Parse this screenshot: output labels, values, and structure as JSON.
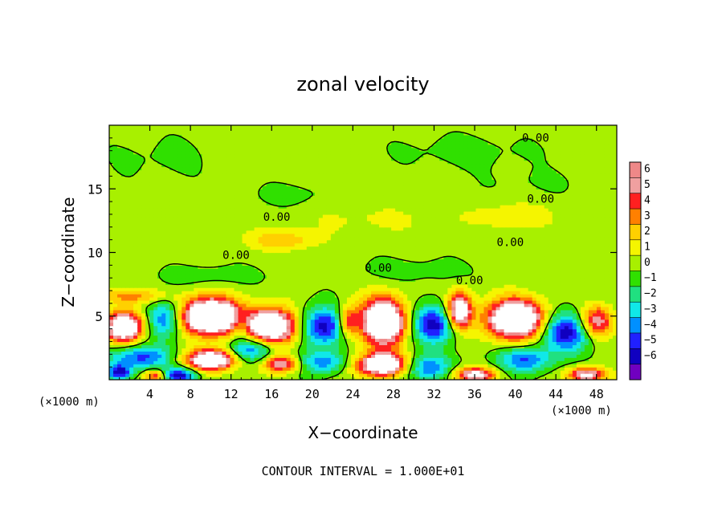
{
  "chart_data": {
    "type": "heatmap",
    "title": "zonal velocity",
    "xlabel": "X−coordinate",
    "ylabel": "Z−coordinate",
    "x_unit_left": "(×1000 m)",
    "x_unit_right": "(×1000 m)",
    "xlim": [
      0,
      50
    ],
    "ylim": [
      0,
      20
    ],
    "x_ticks": [
      4,
      8,
      12,
      16,
      20,
      24,
      28,
      32,
      36,
      40,
      44,
      48
    ],
    "y_ticks": [
      5,
      10,
      15
    ],
    "footer": "CONTOUR INTERVAL = 1.000E+01",
    "contour_label": "0.00",
    "contour_labels_at": [
      {
        "x": 42,
        "z": 18.7
      },
      {
        "x": 42.5,
        "z": 13.9
      },
      {
        "x": 16.5,
        "z": 12.5
      },
      {
        "x": 12.5,
        "z": 9.5
      },
      {
        "x": 39.5,
        "z": 10.5
      },
      {
        "x": 26.5,
        "z": 8.5
      },
      {
        "x": 35.5,
        "z": 7.5
      }
    ],
    "colorbar": {
      "levels": [
        6,
        5,
        4,
        3,
        2,
        1,
        0,
        -1,
        -2,
        -3,
        -4,
        -5,
        -6
      ],
      "colors": [
        "#ee8888",
        "#f0a0a0",
        "#ff2020",
        "#ff8000",
        "#ffd000",
        "#f5f500",
        "#a8f000",
        "#30e000",
        "#20e080",
        "#10e8e8",
        "#0090ff",
        "#2020ff",
        "#1000c0",
        "#7000c0"
      ]
    },
    "blobs": [
      {
        "x": 10,
        "z": 5.0,
        "sx": 3.0,
        "sz": 1.4,
        "v": 12
      },
      {
        "x": 16,
        "z": 4.2,
        "sx": 2.6,
        "sz": 1.4,
        "v": 10
      },
      {
        "x": 27,
        "z": 4.6,
        "sx": 2.2,
        "sz": 1.8,
        "v": 11
      },
      {
        "x": 40,
        "z": 4.8,
        "sx": 2.8,
        "sz": 1.5,
        "v": 11
      },
      {
        "x": 1.5,
        "z": 4.2,
        "sx": 1.8,
        "sz": 1.2,
        "v": 10
      },
      {
        "x": 34.5,
        "z": 5.4,
        "sx": 1.2,
        "sz": 1.4,
        "v": 9
      },
      {
        "x": 48,
        "z": 4.6,
        "sx": 1.6,
        "sz": 1.2,
        "v": 6
      },
      {
        "x": 23.5,
        "z": 4.6,
        "sx": 1.0,
        "sz": 1.2,
        "v": 5
      },
      {
        "x": 10,
        "z": 1.6,
        "sx": 2.4,
        "sz": 0.8,
        "v": 10
      },
      {
        "x": 27,
        "z": 1.2,
        "sx": 2.6,
        "sz": 0.9,
        "v": 10
      },
      {
        "x": 17,
        "z": 1.3,
        "sx": 1.8,
        "sz": 0.7,
        "v": 6
      },
      {
        "x": 36,
        "z": 0.4,
        "sx": 2.0,
        "sz": 0.6,
        "v": 7
      },
      {
        "x": 47,
        "z": 0.4,
        "sx": 1.8,
        "sz": 0.6,
        "v": 7
      },
      {
        "x": 4.5,
        "z": 0.3,
        "sx": 1.0,
        "sz": 0.5,
        "v": 5
      },
      {
        "x": 2,
        "z": 6.6,
        "sx": 4.0,
        "sz": 0.6,
        "v": 3
      },
      {
        "x": 17,
        "z": 11.0,
        "sx": 3.5,
        "sz": 0.8,
        "v": 2.5
      },
      {
        "x": 40,
        "z": 12.9,
        "sx": 4.0,
        "sz": 1.0,
        "v": 1.6
      },
      {
        "x": 26,
        "z": 12.6,
        "sx": 8.0,
        "sz": 1.2,
        "v": 0.8
      },
      {
        "x": 5.5,
        "z": 4.8,
        "sx": 1.8,
        "sz": 1.5,
        "v": -5
      },
      {
        "x": 13,
        "z": 4.4,
        "sx": 1.0,
        "sz": 1.2,
        "v": -3
      },
      {
        "x": 21,
        "z": 4.2,
        "sx": 2.4,
        "sz": 1.5,
        "v": -6
      },
      {
        "x": 32,
        "z": 4.4,
        "sx": 2.2,
        "sz": 1.5,
        "v": -6
      },
      {
        "x": 45,
        "z": 3.8,
        "sx": 2.4,
        "sz": 1.5,
        "v": -6
      },
      {
        "x": 3,
        "z": 1.8,
        "sx": 3.5,
        "sz": 0.9,
        "v": -4.5
      },
      {
        "x": 14,
        "z": 2.4,
        "sx": 2.2,
        "sz": 1.0,
        "v": -5
      },
      {
        "x": 21,
        "z": 1.4,
        "sx": 2.5,
        "sz": 0.9,
        "v": -4
      },
      {
        "x": 31,
        "z": 1.0,
        "sx": 2.8,
        "sz": 1.0,
        "v": -4.5
      },
      {
        "x": 41,
        "z": 1.6,
        "sx": 2.6,
        "sz": 1.0,
        "v": -4.5
      },
      {
        "x": 7,
        "z": 0.4,
        "sx": 1.6,
        "sz": 0.6,
        "v": -6
      },
      {
        "x": 1,
        "z": 0.6,
        "sx": 1.2,
        "sz": 0.6,
        "v": -6
      },
      {
        "x": 10,
        "z": 8.2,
        "sx": 5.0,
        "sz": 0.8,
        "v": -1.0
      },
      {
        "x": 30,
        "z": 8.6,
        "sx": 6.0,
        "sz": 1.0,
        "v": -0.8
      },
      {
        "x": 18,
        "z": 14.5,
        "sx": 4.0,
        "sz": 1.0,
        "v": -0.7
      },
      {
        "x": 35,
        "z": 18.0,
        "sx": 8.0,
        "sz": 1.5,
        "v": -0.6
      },
      {
        "x": 5,
        "z": 17.5,
        "sx": 6.0,
        "sz": 2.0,
        "v": -0.5
      },
      {
        "x": 42,
        "z": 15.5,
        "sx": 6.0,
        "sz": 1.2,
        "v": -0.4
      }
    ]
  }
}
